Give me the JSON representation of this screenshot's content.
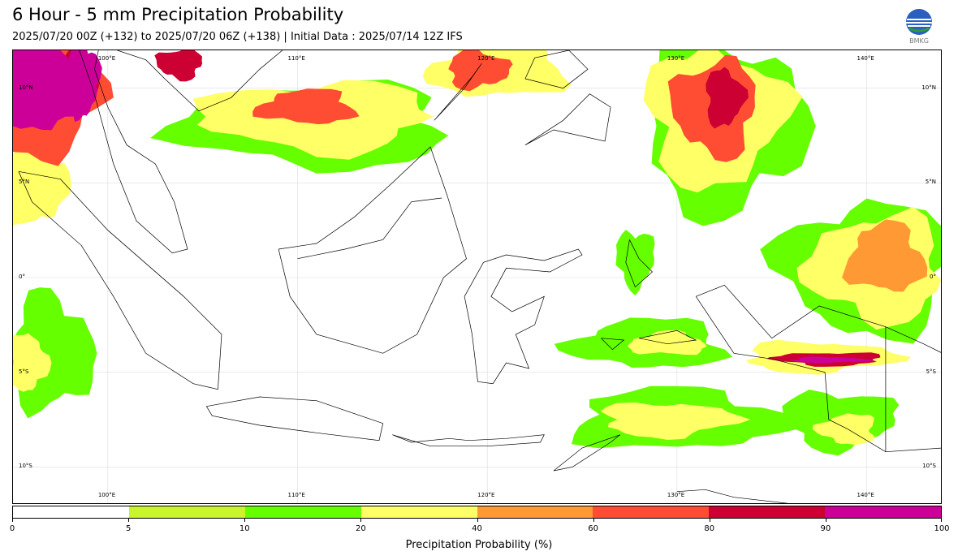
{
  "header": {
    "title": "6 Hour - 5 mm Precipitation Probability",
    "subtitle": "2025/07/20 00Z (+132) to 2025/07/20 06Z (+138) | Initial Data : 2025/07/14 12Z IFS",
    "logo_text": "BMKG"
  },
  "map": {
    "lon_range": [
      95,
      144
    ],
    "lat_range": [
      -12,
      12
    ],
    "lon_ticks": [
      {
        "value": 100,
        "label": "100°E"
      },
      {
        "value": 110,
        "label": "110°E"
      },
      {
        "value": 120,
        "label": "120°E"
      },
      {
        "value": 130,
        "label": "130°E"
      },
      {
        "value": 140,
        "label": "140°E"
      }
    ],
    "lat_ticks": [
      {
        "value": 10,
        "label": "10°N"
      },
      {
        "value": 5,
        "label": "5°N"
      },
      {
        "value": 0,
        "label": "0°"
      },
      {
        "value": -5,
        "label": "5°S"
      },
      {
        "value": -10,
        "label": "10°S"
      }
    ],
    "gridlines": true,
    "precip_areas": [
      {
        "name": "andaman-sea",
        "lon": 96.5,
        "lat": 9.5,
        "rlon": 3.2,
        "rlat": 3.0,
        "level": 5
      },
      {
        "name": "andaman-core",
        "lon": 96.5,
        "lat": 10.0,
        "rlon": 2.4,
        "rlat": 2.3,
        "level": 7
      },
      {
        "name": "myanmar-coast",
        "lon": 98.7,
        "lat": 10.5,
        "rlon": 0.8,
        "rlat": 2.0,
        "level": 7
      },
      {
        "name": "west-sumatra-sea",
        "lon": 96.2,
        "lat": 5.0,
        "rlon": 1.6,
        "rlat": 2.2,
        "level": 3
      },
      {
        "name": "thailand-gulf-north",
        "lon": 98.5,
        "lat": 10.5,
        "rlon": 1.0,
        "rlat": 1.5,
        "level": 6
      },
      {
        "name": "gulf-thailand-east",
        "lon": 103.8,
        "lat": 11.3,
        "rlon": 1.2,
        "rlat": 0.8,
        "level": 6
      },
      {
        "name": "south-china-sea",
        "lon": 111.0,
        "lat": 8.5,
        "rlon": 6.0,
        "rlat": 1.8,
        "level": 3
      },
      {
        "name": "south-china-sea-core",
        "lon": 110.5,
        "lat": 9.0,
        "rlon": 2.5,
        "rlat": 0.9,
        "level": 5
      },
      {
        "name": "scs-green",
        "lon": 111.0,
        "lat": 8.0,
        "rlon": 7.0,
        "rlat": 2.2,
        "level": 2
      },
      {
        "name": "philippines-west",
        "lon": 119.5,
        "lat": 11.0,
        "rlon": 1.6,
        "rlat": 1.0,
        "level": 5
      },
      {
        "name": "philippines-north",
        "lon": 120.5,
        "lat": 11.0,
        "rlon": 3.5,
        "rlat": 1.5,
        "level": 3
      },
      {
        "name": "pacific-east",
        "lon": 132.0,
        "lat": 8.5,
        "rlon": 3.6,
        "rlat": 3.6,
        "level": 3
      },
      {
        "name": "pacific-east-core",
        "lon": 132.0,
        "lat": 9.0,
        "rlon": 2.2,
        "rlat": 2.5,
        "level": 5
      },
      {
        "name": "pacific-east-red",
        "lon": 132.5,
        "lat": 9.5,
        "rlon": 1.0,
        "rlat": 1.5,
        "level": 6
      },
      {
        "name": "pacific-east-green",
        "lon": 132.5,
        "lat": 8.0,
        "rlon": 4.2,
        "rlat": 4.5,
        "level": 2
      },
      {
        "name": "north-papua-sea",
        "lon": 140.5,
        "lat": 0.5,
        "rlon": 3.5,
        "rlat": 2.8,
        "level": 3
      },
      {
        "name": "north-papua-core",
        "lon": 141.0,
        "lat": 1.0,
        "rlon": 2.0,
        "rlat": 1.8,
        "level": 4
      },
      {
        "name": "north-papua-green",
        "lon": 140.0,
        "lat": 0.5,
        "rlon": 4.5,
        "rlat": 3.5,
        "level": 2
      },
      {
        "name": "west-sumatra-ocean",
        "lon": 97.0,
        "lat": -4.0,
        "rlon": 2.2,
        "rlat": 3.0,
        "level": 2
      },
      {
        "name": "west-sumatra-yellow",
        "lon": 95.8,
        "lat": -4.5,
        "rlon": 1.0,
        "rlat": 1.5,
        "level": 3
      },
      {
        "name": "banda-sea",
        "lon": 128.5,
        "lat": -3.5,
        "rlon": 4.0,
        "rlat": 1.3,
        "level": 2
      },
      {
        "name": "seram-yellow",
        "lon": 129.5,
        "lat": -3.5,
        "rlon": 2.0,
        "rlat": 0.6,
        "level": 3
      },
      {
        "name": "papua-band",
        "lon": 137.5,
        "lat": -4.2,
        "rlon": 4.0,
        "rlat": 0.8,
        "level": 3
      },
      {
        "name": "papua-band-red",
        "lon": 138.0,
        "lat": -4.3,
        "rlon": 2.8,
        "rlat": 0.35,
        "level": 6
      },
      {
        "name": "papua-band-core",
        "lon": 138.0,
        "lat": -4.35,
        "rlon": 2.0,
        "rlat": 0.15,
        "level": 7
      },
      {
        "name": "timor-sea",
        "lon": 130.0,
        "lat": -7.5,
        "rlon": 5.5,
        "rlat": 1.6,
        "level": 2
      },
      {
        "name": "timor-yellow",
        "lon": 129.5,
        "lat": -7.5,
        "rlon": 3.5,
        "rlat": 0.9,
        "level": 3
      },
      {
        "name": "arafura-sea",
        "lon": 138.5,
        "lat": -7.5,
        "rlon": 3.0,
        "rlat": 1.5,
        "level": 2
      },
      {
        "name": "arafura-yellow",
        "lon": 139.0,
        "lat": -8.0,
        "rlon": 1.5,
        "rlat": 0.8,
        "level": 3
      },
      {
        "name": "north-maluku",
        "lon": 127.8,
        "lat": 1.0,
        "rlon": 1.0,
        "rlat": 1.5,
        "level": 2
      }
    ]
  },
  "colorbar": {
    "label": "Precipitation Probability (%)",
    "ticks": [
      "0",
      "5",
      "10",
      "20",
      "40",
      "60",
      "80",
      "90",
      "100"
    ],
    "colors": [
      "#ffffff",
      "#c8f52c",
      "#66ff00",
      "#ffff66",
      "#ff9933",
      "#ff4d33",
      "#cc0033",
      "#cc0099"
    ]
  }
}
